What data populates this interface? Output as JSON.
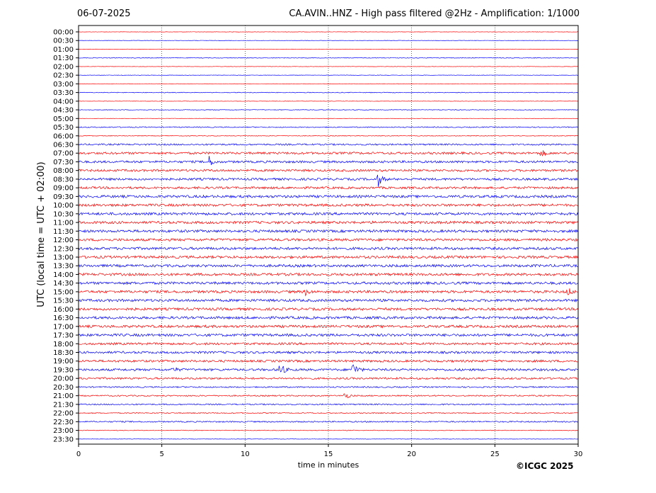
{
  "header": {
    "date": "06-07-2025",
    "title": "CA.AVIN..HNZ - High pass filtered @2Hz - Amplification: 1/1000"
  },
  "credit": "©ICGC 2025",
  "chart_data": {
    "type": "line",
    "title": "CA.AVIN..HNZ - High pass filtered @2Hz - Amplification: 1/1000",
    "xlabel": "time in minutes",
    "ylabel": "UTC (local time = UTC + 02:00)",
    "xlim": [
      0,
      30
    ],
    "x_ticks": [
      0,
      5,
      10,
      15,
      20,
      25,
      30
    ],
    "grid": "vertical dotted",
    "series_colors": [
      "#ff0000",
      "#0000ff"
    ],
    "rows": [
      {
        "label": "00:00",
        "color": "#ff0000",
        "noise": 0.0,
        "events": []
      },
      {
        "label": "00:30",
        "color": "#0000ff",
        "noise": 0.0,
        "events": []
      },
      {
        "label": "01:00",
        "color": "#ff0000",
        "noise": 0.0,
        "events": []
      },
      {
        "label": "01:30",
        "color": "#0000ff",
        "noise": 0.1,
        "events": []
      },
      {
        "label": "02:00",
        "color": "#ff0000",
        "noise": 0.0,
        "events": []
      },
      {
        "label": "02:30",
        "color": "#0000ff",
        "noise": 0.0,
        "events": []
      },
      {
        "label": "03:00",
        "color": "#ff0000",
        "noise": 0.0,
        "events": []
      },
      {
        "label": "03:30",
        "color": "#0000ff",
        "noise": 0.1,
        "events": []
      },
      {
        "label": "04:00",
        "color": "#ff0000",
        "noise": 0.0,
        "events": []
      },
      {
        "label": "04:30",
        "color": "#0000ff",
        "noise": 0.1,
        "events": []
      },
      {
        "label": "05:00",
        "color": "#ff0000",
        "noise": 0.0,
        "events": []
      },
      {
        "label": "05:30",
        "color": "#0000ff",
        "noise": 0.2,
        "events": []
      },
      {
        "label": "06:00",
        "color": "#ff0000",
        "noise": 0.1,
        "events": []
      },
      {
        "label": "06:30",
        "color": "#0000ff",
        "noise": 0.4,
        "events": []
      },
      {
        "label": "07:00",
        "color": "#ff0000",
        "noise": 0.6,
        "events": [
          {
            "t": 27.8,
            "amp": 0.5
          }
        ]
      },
      {
        "label": "07:30",
        "color": "#0000ff",
        "noise": 0.6,
        "events": [
          {
            "t": 7.8,
            "amp": 1.0
          }
        ]
      },
      {
        "label": "08:00",
        "color": "#ff0000",
        "noise": 0.6,
        "events": []
      },
      {
        "label": "08:30",
        "color": "#0000ff",
        "noise": 0.6,
        "events": [
          {
            "t": 18.0,
            "amp": 1.0
          }
        ]
      },
      {
        "label": "09:00",
        "color": "#ff0000",
        "noise": 0.6,
        "events": []
      },
      {
        "label": "09:30",
        "color": "#0000ff",
        "noise": 0.7,
        "events": []
      },
      {
        "label": "10:00",
        "color": "#ff0000",
        "noise": 0.7,
        "events": []
      },
      {
        "label": "10:30",
        "color": "#0000ff",
        "noise": 0.7,
        "events": []
      },
      {
        "label": "11:00",
        "color": "#ff0000",
        "noise": 0.7,
        "events": []
      },
      {
        "label": "11:30",
        "color": "#0000ff",
        "noise": 0.7,
        "events": []
      },
      {
        "label": "12:00",
        "color": "#ff0000",
        "noise": 0.7,
        "events": []
      },
      {
        "label": "12:30",
        "color": "#0000ff",
        "noise": 0.7,
        "events": []
      },
      {
        "label": "13:00",
        "color": "#ff0000",
        "noise": 0.7,
        "events": []
      },
      {
        "label": "13:30",
        "color": "#0000ff",
        "noise": 0.7,
        "events": []
      },
      {
        "label": "14:00",
        "color": "#ff0000",
        "noise": 0.7,
        "events": []
      },
      {
        "label": "14:30",
        "color": "#0000ff",
        "noise": 0.7,
        "events": []
      },
      {
        "label": "15:00",
        "color": "#ff0000",
        "noise": 0.7,
        "events": [
          {
            "t": 13.6,
            "amp": 0.5
          },
          {
            "t": 29.4,
            "amp": 0.6
          }
        ]
      },
      {
        "label": "15:30",
        "color": "#0000ff",
        "noise": 0.7,
        "events": []
      },
      {
        "label": "16:00",
        "color": "#ff0000",
        "noise": 0.7,
        "events": []
      },
      {
        "label": "16:30",
        "color": "#0000ff",
        "noise": 0.7,
        "events": []
      },
      {
        "label": "17:00",
        "color": "#ff0000",
        "noise": 0.7,
        "events": []
      },
      {
        "label": "17:30",
        "color": "#0000ff",
        "noise": 0.7,
        "events": []
      },
      {
        "label": "18:00",
        "color": "#ff0000",
        "noise": 0.6,
        "events": []
      },
      {
        "label": "18:30",
        "color": "#0000ff",
        "noise": 0.6,
        "events": []
      },
      {
        "label": "19:00",
        "color": "#ff0000",
        "noise": 0.6,
        "events": []
      },
      {
        "label": "19:30",
        "color": "#0000ff",
        "noise": 0.6,
        "events": [
          {
            "t": 5.7,
            "amp": 0.4
          },
          {
            "t": 12.1,
            "amp": 1.1
          },
          {
            "t": 16.5,
            "amp": 1.1
          }
        ]
      },
      {
        "label": "20:00",
        "color": "#ff0000",
        "noise": 0.5,
        "events": []
      },
      {
        "label": "20:30",
        "color": "#0000ff",
        "noise": 0.3,
        "events": []
      },
      {
        "label": "21:00",
        "color": "#ff0000",
        "noise": 0.3,
        "events": [
          {
            "t": 16.0,
            "amp": 0.6
          }
        ]
      },
      {
        "label": "21:30",
        "color": "#0000ff",
        "noise": 0.3,
        "events": []
      },
      {
        "label": "22:00",
        "color": "#ff0000",
        "noise": 0.2,
        "events": []
      },
      {
        "label": "22:30",
        "color": "#0000ff",
        "noise": 0.3,
        "events": []
      },
      {
        "label": "23:00",
        "color": "#ff0000",
        "noise": 0.1,
        "events": []
      },
      {
        "label": "23:30",
        "color": "#0000ff",
        "noise": 0.0,
        "events": []
      }
    ]
  }
}
